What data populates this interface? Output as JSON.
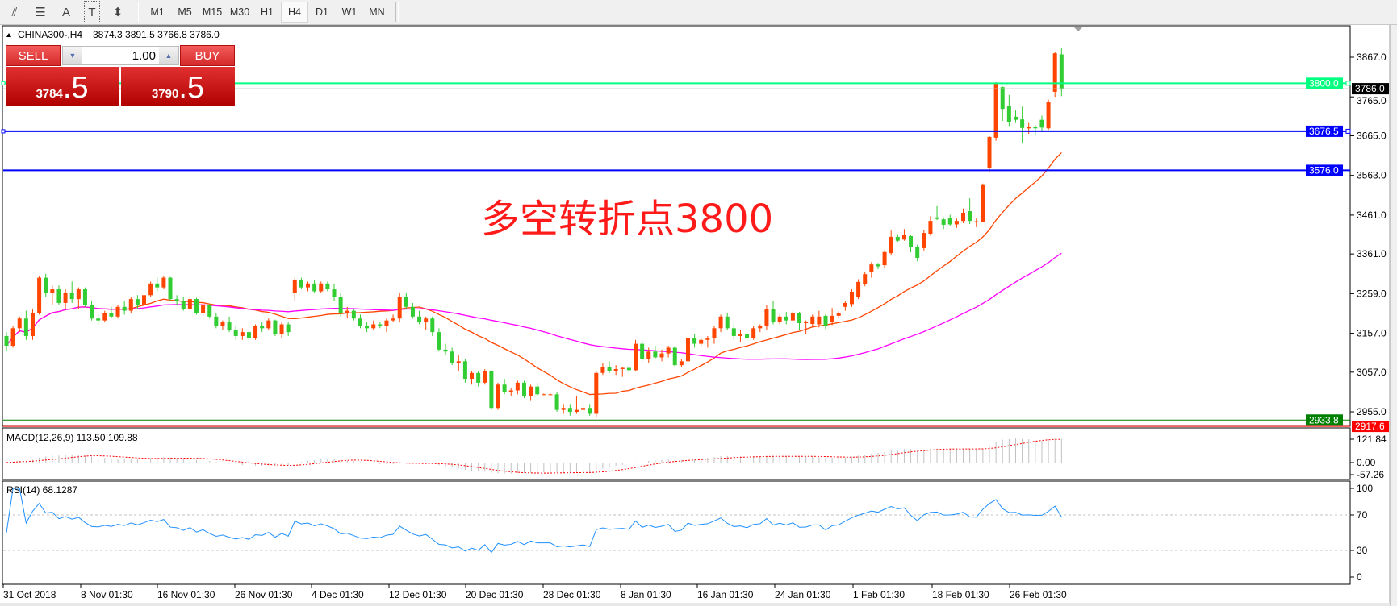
{
  "toolbar": {
    "icons": [
      "fibo-expansion-icon",
      "fibo-fan-icon",
      "text-icon",
      "text-label-icon",
      "arrows-icon"
    ],
    "icon_glyphs": [
      "⫽",
      "☰",
      "A",
      "T",
      "⬍"
    ],
    "timeframes": [
      "M1",
      "M5",
      "M15",
      "M30",
      "H1",
      "H4",
      "D1",
      "W1",
      "MN"
    ],
    "active_timeframe": "H4"
  },
  "chart_header": {
    "symbol": "CHINA300-,H4",
    "ohlc": "3874.3 3891.5 3766.8 3786.0"
  },
  "trade_panel": {
    "sell_label": "SELL",
    "buy_label": "BUY",
    "volume": "1.00",
    "sell_price_main": "3784",
    "sell_price_frac": ".5",
    "buy_price_main": "3790",
    "buy_price_frac": ".5"
  },
  "annotation": "多空转折点3800",
  "macd_label": "MACD(12,26,9) 113.50 109.88",
  "rsi_label": "RSI(14) 68.1287",
  "colors": {
    "bull": "#ff4500",
    "bear": "#32cd32",
    "ma_fast": "#ff4500",
    "ma_slow": "#ff00ff",
    "rsi": "#1e90ff",
    "macd_hist": "#c0c0c0",
    "macd_signal": "#ff0000"
  },
  "chart_data": {
    "type": "candlestick",
    "ohlc_fields": [
      "open",
      "high",
      "low",
      "close"
    ],
    "candles": [
      [
        3150,
        3160,
        3110,
        3125
      ],
      [
        3125,
        3175,
        3120,
        3170
      ],
      [
        3170,
        3200,
        3160,
        3195
      ],
      [
        3195,
        3215,
        3140,
        3150
      ],
      [
        3150,
        3220,
        3140,
        3210
      ],
      [
        3210,
        3305,
        3205,
        3300
      ],
      [
        3300,
        3310,
        3250,
        3260
      ],
      [
        3260,
        3280,
        3230,
        3270
      ],
      [
        3270,
        3280,
        3230,
        3235
      ],
      [
        3235,
        3270,
        3220,
        3262
      ],
      [
        3262,
        3290,
        3235,
        3245
      ],
      [
        3245,
        3275,
        3220,
        3270
      ],
      [
        3270,
        3275,
        3225,
        3230
      ],
      [
        3230,
        3240,
        3190,
        3195
      ],
      [
        3195,
        3205,
        3180,
        3190
      ],
      [
        3190,
        3215,
        3185,
        3210
      ],
      [
        3210,
        3225,
        3195,
        3200
      ],
      [
        3200,
        3230,
        3195,
        3225
      ],
      [
        3225,
        3240,
        3205,
        3215
      ],
      [
        3215,
        3250,
        3210,
        3245
      ],
      [
        3245,
        3255,
        3220,
        3230
      ],
      [
        3230,
        3260,
        3225,
        3255
      ],
      [
        3255,
        3290,
        3250,
        3285
      ],
      [
        3285,
        3300,
        3265,
        3275
      ],
      [
        3275,
        3305,
        3270,
        3300
      ],
      [
        3300,
        3302,
        3240,
        3245
      ],
      [
        3245,
        3255,
        3230,
        3240
      ],
      [
        3240,
        3250,
        3215,
        3220
      ],
      [
        3220,
        3250,
        3215,
        3245
      ],
      [
        3245,
        3248,
        3205,
        3210
      ],
      [
        3210,
        3235,
        3200,
        3230
      ],
      [
        3230,
        3232,
        3195,
        3200
      ],
      [
        3200,
        3210,
        3170,
        3175
      ],
      [
        3175,
        3190,
        3165,
        3185
      ],
      [
        3185,
        3200,
        3160,
        3165
      ],
      [
        3165,
        3175,
        3140,
        3150
      ],
      [
        3150,
        3170,
        3140,
        3160
      ],
      [
        3160,
        3165,
        3135,
        3145
      ],
      [
        3145,
        3180,
        3140,
        3175
      ],
      [
        3175,
        3185,
        3160,
        3170
      ],
      [
        3170,
        3195,
        3165,
        3190
      ],
      [
        3190,
        3192,
        3150,
        3155
      ],
      [
        3155,
        3185,
        3145,
        3180
      ],
      [
        3180,
        3185,
        3150,
        3160
      ],
      [
        3260,
        3300,
        3240,
        3295
      ],
      [
        3295,
        3300,
        3270,
        3275
      ],
      [
        3275,
        3290,
        3265,
        3285
      ],
      [
        3285,
        3295,
        3260,
        3265
      ],
      [
        3265,
        3290,
        3260,
        3285
      ],
      [
        3285,
        3290,
        3265,
        3270
      ],
      [
        3270,
        3285,
        3240,
        3250
      ],
      [
        3250,
        3260,
        3200,
        3210
      ],
      [
        3210,
        3225,
        3195,
        3215
      ],
      [
        3215,
        3220,
        3190,
        3195
      ],
      [
        3195,
        3205,
        3170,
        3175
      ],
      [
        3175,
        3185,
        3160,
        3170
      ],
      [
        3170,
        3190,
        3165,
        3180
      ],
      [
        3180,
        3185,
        3170,
        3175
      ],
      [
        3175,
        3195,
        3160,
        3190
      ],
      [
        3190,
        3205,
        3185,
        3195
      ],
      [
        3195,
        3260,
        3185,
        3250
      ],
      [
        3250,
        3262,
        3220,
        3225
      ],
      [
        3225,
        3235,
        3195,
        3200
      ],
      [
        3200,
        3215,
        3180,
        3185
      ],
      [
        3185,
        3200,
        3165,
        3195
      ],
      [
        3195,
        3200,
        3150,
        3160
      ],
      [
        3160,
        3170,
        3110,
        3115
      ],
      [
        3115,
        3130,
        3100,
        3110
      ],
      [
        3110,
        3120,
        3075,
        3080
      ],
      [
        3080,
        3100,
        3060,
        3085
      ],
      [
        3085,
        3090,
        3030,
        3040
      ],
      [
        3040,
        3060,
        3025,
        3055
      ],
      [
        3055,
        3060,
        3020,
        3030
      ],
      [
        3030,
        3065,
        3025,
        3060
      ],
      [
        3060,
        3062,
        2960,
        2965
      ],
      [
        2965,
        3030,
        2960,
        3025
      ],
      [
        3025,
        3040,
        3000,
        3005
      ],
      [
        3005,
        3015,
        2995,
        3010
      ],
      [
        3010,
        3035,
        3000,
        3030
      ],
      [
        3030,
        3035,
        2990,
        2995
      ],
      [
        2995,
        3025,
        2985,
        3020
      ],
      [
        3020,
        3030,
        2995,
        3000
      ],
      [
        3000,
        3002,
        2998,
        3000
      ],
      [
        3000,
        3002,
        2998,
        3000
      ],
      [
        3000,
        3005,
        2955,
        2960
      ],
      [
        2960,
        2975,
        2950,
        2965
      ],
      [
        2965,
        2975,
        2945,
        2955
      ],
      [
        2955,
        2995,
        2950,
        2960
      ],
      [
        2960,
        2970,
        2950,
        2965
      ],
      [
        2965,
        2975,
        2945,
        2950
      ],
      [
        2950,
        3060,
        2940,
        3055
      ],
      [
        3055,
        3080,
        3050,
        3070
      ],
      [
        3070,
        3085,
        3055,
        3060
      ],
      [
        3060,
        3075,
        3050,
        3065
      ],
      [
        3065,
        3070,
        3045,
        3068
      ],
      [
        3068,
        3075,
        3055,
        3062
      ],
      [
        3062,
        3140,
        3060,
        3130
      ],
      [
        3130,
        3140,
        3085,
        3090
      ],
      [
        3090,
        3120,
        3080,
        3110
      ],
      [
        3110,
        3125,
        3090,
        3095
      ],
      [
        3095,
        3115,
        3085,
        3105
      ],
      [
        3105,
        3125,
        3095,
        3120
      ],
      [
        3120,
        3125,
        3070,
        3075
      ],
      [
        3075,
        3090,
        3070,
        3085
      ],
      [
        3085,
        3150,
        3080,
        3145
      ],
      [
        3145,
        3155,
        3120,
        3130
      ],
      [
        3130,
        3145,
        3125,
        3140
      ],
      [
        3140,
        3150,
        3120,
        3145
      ],
      [
        3145,
        3175,
        3130,
        3170
      ],
      [
        3170,
        3205,
        3160,
        3200
      ],
      [
        3200,
        3210,
        3165,
        3170
      ],
      [
        3170,
        3180,
        3140,
        3150
      ],
      [
        3150,
        3165,
        3135,
        3155
      ],
      [
        3155,
        3160,
        3135,
        3145
      ],
      [
        3145,
        3175,
        3140,
        3170
      ],
      [
        3170,
        3180,
        3160,
        3175
      ],
      [
        3175,
        3230,
        3165,
        3220
      ],
      [
        3220,
        3240,
        3180,
        3185
      ],
      [
        3185,
        3205,
        3180,
        3200
      ],
      [
        3200,
        3212,
        3180,
        3190
      ],
      [
        3190,
        3215,
        3185,
        3208
      ],
      [
        3208,
        3212,
        3165,
        3183
      ],
      [
        3183,
        3190,
        3156,
        3185
      ],
      [
        3181,
        3205,
        3175,
        3200
      ],
      [
        3180,
        3215,
        3172,
        3200
      ],
      [
        3202,
        3206,
        3168,
        3175
      ],
      [
        3187,
        3222,
        3178,
        3202
      ],
      [
        3202,
        3214,
        3195,
        3208
      ],
      [
        3225,
        3240,
        3215,
        3235
      ],
      [
        3232,
        3270,
        3225,
        3264
      ],
      [
        3251,
        3296,
        3245,
        3289
      ],
      [
        3283,
        3315,
        3278,
        3309
      ],
      [
        3314,
        3340,
        3300,
        3334
      ],
      [
        3334,
        3338,
        3322,
        3329
      ],
      [
        3332,
        3370,
        3326,
        3366
      ],
      [
        3363,
        3421,
        3358,
        3405
      ],
      [
        3405,
        3412,
        3392,
        3395
      ],
      [
        3398,
        3425,
        3395,
        3410
      ],
      [
        3407,
        3410,
        3365,
        3378
      ],
      [
        3380,
        3385,
        3342,
        3351
      ],
      [
        3376,
        3422,
        3370,
        3415
      ],
      [
        3413,
        3458,
        3408,
        3446
      ],
      [
        3455,
        3484,
        3448,
        3451
      ],
      [
        3450,
        3455,
        3425,
        3436
      ],
      [
        3453,
        3462,
        3432,
        3437
      ],
      [
        3437,
        3452,
        3428,
        3446
      ],
      [
        3446,
        3478,
        3440,
        3467
      ],
      [
        3471,
        3504,
        3438,
        3446
      ],
      [
        3445,
        3452,
        3430,
        3445
      ],
      [
        3444,
        3542,
        3442,
        3540
      ],
      [
        3583,
        3664,
        3573,
        3662
      ],
      [
        3660,
        3803,
        3652,
        3801
      ],
      [
        3790,
        3792,
        3703,
        3734
      ],
      [
        3741,
        3770,
        3690,
        3701
      ],
      [
        3714,
        3730,
        3698,
        3706
      ],
      [
        3707,
        3740,
        3645,
        3685
      ],
      [
        3684,
        3698,
        3670,
        3688
      ],
      [
        3688,
        3693,
        3668,
        3684
      ],
      [
        3706,
        3717,
        3675,
        3686
      ],
      [
        3684,
        3758,
        3680,
        3753
      ],
      [
        3778,
        3880,
        3765,
        3877
      ],
      [
        3874.3,
        3891.5,
        3766.8,
        3786.0
      ]
    ],
    "price_axis": {
      "range": [
        2917.6,
        3948
      ],
      "ticks": [
        "3867.0",
        "3765.0",
        "3665.0",
        "3563.0",
        "3461.0",
        "3361.0",
        "3259.0",
        "3157.0",
        "3057.0",
        "2955.0"
      ]
    },
    "horizontal_lines": [
      {
        "value": 3786.0,
        "label": "3786.0",
        "line_color": "#c0c0c0",
        "label_bg": "#000000"
      },
      {
        "value": 3800.0,
        "label": "3800.0",
        "line_color": "#00ff7f",
        "label_bg": "#00ff7f"
      },
      {
        "value": 3676.5,
        "label": "3676.5",
        "line_color": "#0000ff",
        "label_bg": "#0000ff"
      },
      {
        "value": 3576.0,
        "label": "3576.0",
        "line_color": "#0000ff",
        "label_bg": "#0000ff"
      },
      {
        "value": 2933.8,
        "label": "2933.8",
        "line_color": "#008000",
        "label_bg": "#008000"
      },
      {
        "value": 2917.6,
        "label": "2917.6",
        "line_color": "#ff0000",
        "label_bg": "#ff0000"
      }
    ],
    "macd_axis": {
      "ticks": [
        "121.84",
        "0.00",
        "-57.26"
      ],
      "range": [
        -57.26,
        121.84
      ]
    },
    "rsi_axis": {
      "ticks": [
        "100",
        "70",
        "30",
        "0"
      ],
      "levels": [
        70,
        30
      ]
    },
    "x_tick_labels": [
      "31 Oct 2018",
      "8 Nov 01:30",
      "16 Nov 01:30",
      "26 Nov 01:30",
      "4 Dec 01:30",
      "12 Dec 01:30",
      "20 Dec 01:30",
      "28 Dec 01:30",
      "8 Jan 01:30",
      "16 Jan 01:30",
      "24 Jan 01:30",
      "1 Feb 01:30",
      "18 Feb 01:30",
      "26 Feb 01:30"
    ]
  }
}
